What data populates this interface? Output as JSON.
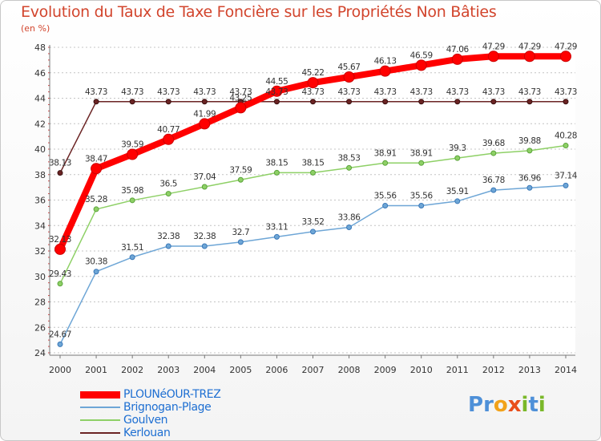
{
  "title": "Evolution du Taux de Taxe Foncière sur les Propriétés Non Bâties",
  "unit_label": "(en %)",
  "logo_text": "Proxiti",
  "chart_data": {
    "type": "line",
    "categories": [
      "2000",
      "2001",
      "2002",
      "2003",
      "2004",
      "2005",
      "2006",
      "2007",
      "2008",
      "2009",
      "2010",
      "2011",
      "2012",
      "2013",
      "2014"
    ],
    "ylim": [
      24,
      48
    ],
    "yticks": [
      24,
      26,
      28,
      30,
      32,
      34,
      36,
      38,
      40,
      42,
      44,
      46,
      48
    ],
    "grid": "horizontal dotted",
    "legend_position": "bottom-left",
    "series": [
      {
        "name": "Kerlouan",
        "color": "#6b2424",
        "values": [
          38.13,
          43.73,
          43.73,
          43.73,
          43.73,
          43.73,
          43.73,
          43.73,
          43.73,
          43.73,
          43.73,
          43.73,
          43.73,
          43.73,
          43.73
        ],
        "labels": [
          "38.13",
          "43.73",
          "43.73",
          "43.73",
          "43.73",
          "43.73",
          "43.73",
          "43.73",
          "43.73",
          "43.73",
          "43.73",
          "43.73",
          "43.73",
          "43.73",
          "43.73"
        ]
      },
      {
        "name": "Goulven",
        "color": "#8ed066",
        "values": [
          29.43,
          35.28,
          35.98,
          36.5,
          37.04,
          37.59,
          38.15,
          38.15,
          38.53,
          38.91,
          38.91,
          39.3,
          39.68,
          39.88,
          40.28
        ],
        "labels": [
          "29.43",
          "35.28",
          "35.98",
          "36.5",
          "37.04",
          "37.59",
          "38.15",
          "38.15",
          "38.53",
          "38.91",
          "38.91",
          "39.3",
          "39.68",
          "39.88",
          "40.28"
        ]
      },
      {
        "name": "Brignogan-Plage",
        "color": "#6ea6d6",
        "values": [
          24.67,
          30.38,
          31.51,
          32.38,
          32.38,
          32.7,
          33.11,
          33.52,
          33.86,
          35.56,
          35.56,
          35.91,
          36.78,
          36.96,
          37.14
        ],
        "labels": [
          "24.67",
          "30.38",
          "31.51",
          "32.38",
          "32.38",
          "32.7",
          "33.11",
          "33.52",
          "33.86",
          "35.56",
          "35.56",
          "35.91",
          "36.78",
          "36.96",
          "37.14"
        ]
      },
      {
        "name": "PLOUNéOUR-TREZ",
        "color": "#ff0000",
        "values": [
          32.13,
          38.47,
          39.59,
          40.77,
          41.99,
          43.25,
          44.55,
          45.22,
          45.67,
          46.13,
          46.59,
          47.06,
          47.29,
          47.29,
          47.29
        ],
        "labels": [
          "32.13",
          "38.47",
          "39.59",
          "40.77",
          "41.99",
          "43.25",
          "44.55",
          "45.22",
          "45.67",
          "46.13",
          "46.59",
          "47.06",
          "47.29",
          "47.29",
          "47.29"
        ]
      }
    ],
    "legend_order": [
      "PLOUNéOUR-TREZ",
      "Brignogan-Plage",
      "Goulven",
      "Kerlouan"
    ]
  }
}
